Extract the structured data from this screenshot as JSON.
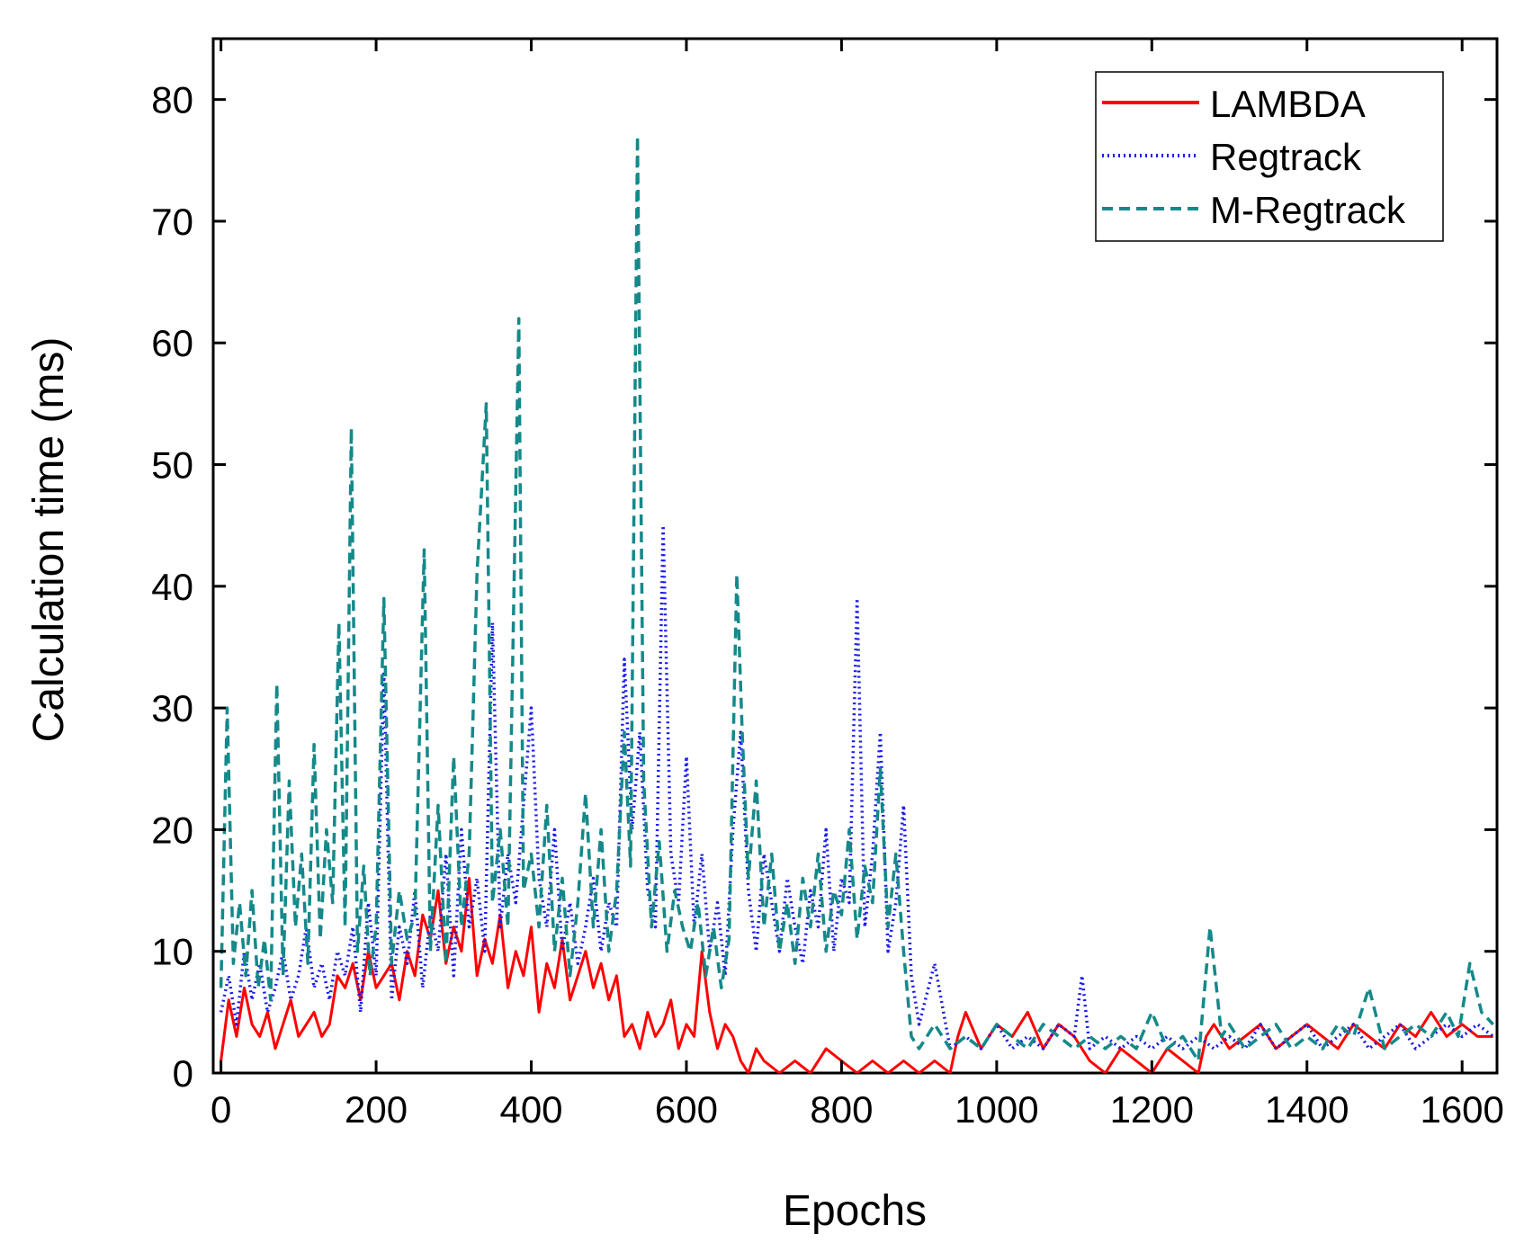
{
  "chart_data": {
    "type": "line",
    "title": "",
    "xlabel": "Epochs",
    "ylabel": "Calculation time (ms)",
    "xlim": [
      -10,
      1645
    ],
    "ylim": [
      0,
      85
    ],
    "xticks": [
      0,
      200,
      400,
      600,
      800,
      1000,
      1200,
      1400,
      1600
    ],
    "yticks": [
      0,
      10,
      20,
      30,
      40,
      50,
      60,
      70,
      80
    ],
    "grid": false,
    "legend_position": "top-right",
    "series": [
      {
        "name": "LAMBDA",
        "color": "#ff0000",
        "style": "solid",
        "x": [
          0,
          10,
          20,
          30,
          40,
          50,
          60,
          70,
          80,
          90,
          100,
          110,
          120,
          130,
          140,
          150,
          160,
          170,
          180,
          190,
          200,
          210,
          220,
          230,
          240,
          250,
          260,
          270,
          280,
          290,
          300,
          310,
          320,
          330,
          340,
          350,
          360,
          370,
          380,
          390,
          400,
          410,
          420,
          430,
          440,
          450,
          460,
          470,
          480,
          490,
          500,
          510,
          520,
          530,
          540,
          550,
          560,
          570,
          580,
          590,
          600,
          610,
          620,
          630,
          640,
          650,
          660,
          670,
          680,
          690,
          700,
          720,
          740,
          760,
          780,
          800,
          820,
          840,
          860,
          880,
          900,
          920,
          940,
          950,
          960,
          980,
          1000,
          1020,
          1040,
          1060,
          1080,
          1100,
          1120,
          1140,
          1160,
          1180,
          1200,
          1220,
          1240,
          1260,
          1270,
          1280,
          1300,
          1320,
          1340,
          1360,
          1380,
          1400,
          1420,
          1440,
          1460,
          1480,
          1500,
          1520,
          1540,
          1560,
          1580,
          1600,
          1620,
          1640
        ],
        "values": [
          1,
          6,
          3,
          7,
          4,
          3,
          5,
          2,
          4,
          6,
          3,
          4,
          5,
          3,
          4,
          8,
          7,
          9,
          6,
          10,
          7,
          8,
          9,
          6,
          10,
          8,
          13,
          11,
          15,
          9,
          12,
          10,
          16,
          8,
          11,
          9,
          13,
          7,
          10,
          8,
          12,
          5,
          9,
          7,
          11,
          6,
          8,
          10,
          7,
          9,
          6,
          8,
          3,
          4,
          2,
          5,
          3,
          4,
          6,
          2,
          4,
          3,
          10,
          5,
          2,
          4,
          3,
          1,
          0,
          2,
          1,
          0,
          1,
          0,
          2,
          1,
          0,
          1,
          0,
          1,
          0,
          1,
          0,
          3,
          5,
          2,
          4,
          3,
          5,
          2,
          4,
          3,
          1,
          0,
          2,
          1,
          0,
          2,
          1,
          0,
          3,
          4,
          2,
          3,
          4,
          2,
          3,
          4,
          3,
          2,
          4,
          3,
          2,
          4,
          3,
          5,
          3,
          4,
          3,
          3
        ]
      },
      {
        "name": "Regtrack",
        "color": "#1a1aee",
        "style": "dotted",
        "x": [
          0,
          10,
          20,
          30,
          40,
          50,
          60,
          70,
          80,
          90,
          100,
          110,
          120,
          130,
          140,
          150,
          160,
          170,
          180,
          190,
          200,
          210,
          220,
          230,
          240,
          250,
          260,
          270,
          280,
          290,
          300,
          310,
          320,
          330,
          340,
          350,
          360,
          370,
          380,
          390,
          400,
          410,
          420,
          430,
          440,
          450,
          460,
          470,
          480,
          490,
          500,
          510,
          520,
          530,
          540,
          550,
          560,
          570,
          580,
          590,
          600,
          610,
          620,
          630,
          640,
          650,
          660,
          670,
          680,
          690,
          700,
          710,
          720,
          730,
          740,
          750,
          760,
          770,
          780,
          790,
          800,
          810,
          820,
          830,
          840,
          850,
          860,
          870,
          880,
          890,
          900,
          920,
          940,
          960,
          980,
          1000,
          1020,
          1040,
          1060,
          1080,
          1100,
          1110,
          1120,
          1140,
          1160,
          1180,
          1200,
          1220,
          1240,
          1260,
          1280,
          1300,
          1320,
          1340,
          1360,
          1380,
          1400,
          1420,
          1440,
          1460,
          1480,
          1500,
          1520,
          1540,
          1560,
          1580,
          1600,
          1620,
          1640
        ],
        "values": [
          5,
          8,
          4,
          10,
          6,
          9,
          5,
          7,
          10,
          6,
          8,
          12,
          7,
          9,
          6,
          10,
          8,
          12,
          5,
          14,
          8,
          33,
          6,
          12,
          9,
          15,
          7,
          13,
          10,
          18,
          8,
          20,
          12,
          16,
          10,
          37,
          12,
          18,
          14,
          22,
          30,
          16,
          12,
          20,
          10,
          14,
          9,
          12,
          16,
          10,
          14,
          12,
          34,
          20,
          28,
          15,
          12,
          45,
          18,
          14,
          26,
          12,
          18,
          10,
          14,
          8,
          20,
          28,
          15,
          10,
          18,
          14,
          10,
          16,
          12,
          9,
          15,
          12,
          20,
          10,
          16,
          14,
          39,
          12,
          18,
          28,
          10,
          14,
          22,
          8,
          4,
          9,
          2,
          3,
          2,
          4,
          2,
          3,
          2,
          4,
          3,
          8,
          2,
          3,
          2,
          3,
          2,
          3,
          2,
          3,
          2,
          3,
          2,
          4,
          2,
          3,
          4,
          2,
          3,
          4,
          2,
          3,
          4,
          2,
          3,
          4,
          3,
          4,
          3
        ]
      },
      {
        "name": "M-Regtrack",
        "color": "#15898a",
        "style": "dashed",
        "x": [
          0,
          8,
          16,
          24,
          32,
          40,
          48,
          56,
          64,
          72,
          80,
          88,
          96,
          104,
          112,
          120,
          128,
          136,
          144,
          152,
          160,
          168,
          176,
          184,
          192,
          200,
          210,
          220,
          230,
          240,
          250,
          262,
          270,
          280,
          290,
          300,
          310,
          320,
          330,
          342,
          350,
          360,
          370,
          384,
          390,
          400,
          410,
          420,
          430,
          440,
          450,
          460,
          470,
          480,
          490,
          500,
          510,
          520,
          528,
          537,
          545,
          555,
          565,
          575,
          585,
          595,
          605,
          615,
          625,
          635,
          645,
          655,
          665,
          672,
          680,
          690,
          700,
          710,
          720,
          730,
          740,
          750,
          760,
          770,
          780,
          790,
          800,
          810,
          820,
          830,
          840,
          850,
          860,
          870,
          880,
          890,
          900,
          920,
          940,
          960,
          980,
          1000,
          1020,
          1040,
          1060,
          1080,
          1100,
          1120,
          1140,
          1160,
          1180,
          1200,
          1220,
          1240,
          1260,
          1275,
          1290,
          1300,
          1320,
          1340,
          1360,
          1380,
          1400,
          1420,
          1440,
          1460,
          1480,
          1500,
          1520,
          1540,
          1560,
          1580,
          1595,
          1610,
          1625,
          1640
        ],
        "values": [
          7,
          30,
          9,
          14,
          8,
          15,
          7,
          11,
          6,
          32,
          8,
          24,
          12,
          18,
          9,
          27,
          11,
          20,
          14,
          37,
          12,
          53,
          10,
          17,
          8,
          12,
          39,
          9,
          15,
          11,
          13,
          43,
          10,
          22,
          9,
          26,
          12,
          18,
          41,
          55,
          14,
          20,
          12,
          62,
          15,
          18,
          12,
          22,
          10,
          16,
          8,
          14,
          23,
          12,
          20,
          10,
          15,
          28,
          17,
          77,
          24,
          12,
          19,
          10,
          15,
          12,
          10,
          14,
          8,
          12,
          7,
          11,
          41,
          28,
          16,
          24,
          12,
          18,
          10,
          14,
          9,
          16,
          12,
          18,
          10,
          15,
          13,
          20,
          11,
          17,
          14,
          25,
          12,
          18,
          10,
          3,
          2,
          4,
          2,
          3,
          2,
          4,
          3,
          2,
          4,
          3,
          2,
          3,
          2,
          3,
          2,
          5,
          2,
          3,
          1,
          12,
          3,
          4,
          2,
          3,
          4,
          2,
          3,
          2,
          4,
          3,
          7,
          2,
          3,
          4,
          3,
          5,
          3,
          9,
          5,
          4
        ]
      }
    ]
  }
}
